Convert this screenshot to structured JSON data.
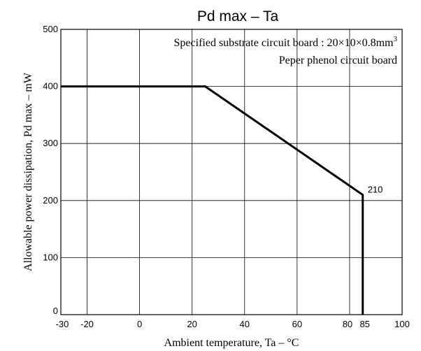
{
  "chart_data": {
    "type": "line",
    "title": "Pd max – Ta",
    "xlabel": "Ambient temperature, Ta – °C",
    "ylabel": "Allowable power dissipation, Pd max – mW",
    "xlim": [
      -30,
      100
    ],
    "ylim": [
      0,
      500
    ],
    "grid": true,
    "x_ticks": [
      -30,
      -20,
      0,
      20,
      40,
      60,
      80,
      85,
      100
    ],
    "x_tick_labels": [
      "-30",
      "-20",
      "0",
      "20",
      "40",
      "60",
      "80",
      "85",
      "100"
    ],
    "y_ticks": [
      0,
      100,
      200,
      300,
      400,
      500
    ],
    "y_tick_labels": [
      "0",
      "100",
      "200",
      "300",
      "400",
      "500"
    ],
    "grid_x": [
      -20,
      0,
      20,
      40,
      60,
      80
    ],
    "grid_y": [
      100,
      200,
      300,
      400
    ],
    "series": [
      {
        "x": [
          -30,
          25,
          85,
          85
        ],
        "y": [
          400,
          400,
          210,
          0
        ]
      }
    ],
    "annotations": {
      "note_line1_prefix": "Specified substrate circuit board : 20×10×0.8mm",
      "note_line1_sup": "3",
      "note_line2": "Peper phenol circuit board",
      "point_label": "210",
      "point_label_x": 85,
      "point_label_y": 210
    },
    "color": "#000000"
  }
}
